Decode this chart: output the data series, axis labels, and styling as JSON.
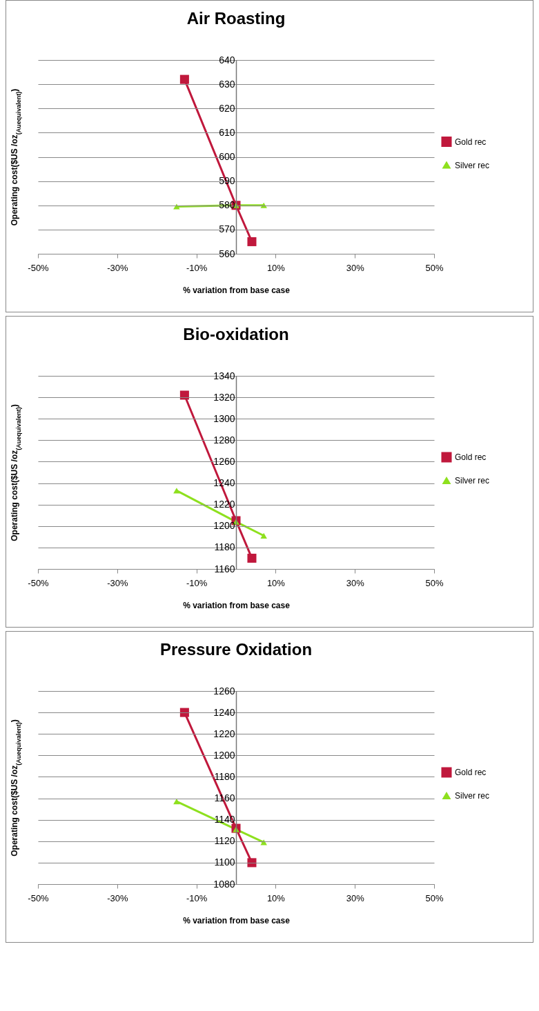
{
  "chart_data": [
    {
      "type": "line",
      "title": "Air Roasting",
      "xlabel": "% variation from base case",
      "ylabel": "Operating cost($US /oz$_{(Auequivalent)}$)",
      "xlim": [
        -50,
        50
      ],
      "xticks": [
        {
          "value": -50,
          "label": "-50%"
        },
        {
          "value": -30,
          "label": "-30%"
        },
        {
          "value": -10,
          "label": "-10%"
        },
        {
          "value": 10,
          "label": "10%"
        },
        {
          "value": 30,
          "label": "30%"
        },
        {
          "value": 50,
          "label": "50%"
        }
      ],
      "ylim": [
        560,
        640
      ],
      "yticks": [
        560,
        570,
        580,
        590,
        600,
        610,
        620,
        630,
        640
      ],
      "grid": "y",
      "legend": "right",
      "line_style": "solid",
      "series": [
        {
          "name": "Gold rec",
          "color": "#c0183c",
          "marker": "square",
          "x": [
            -13,
            0,
            4
          ],
          "values": [
            632,
            580,
            565
          ]
        },
        {
          "name": "Silver rec",
          "color": "#8ee01e",
          "marker": "triangle",
          "x": [
            -15,
            0,
            7
          ],
          "values": [
            579.5,
            580,
            580
          ]
        }
      ]
    },
    {
      "type": "line",
      "title": "Bio-oxidation",
      "xlabel": "% variation from base case",
      "ylabel": "Operating cost($US /oz$_{(Auequivalent)}$)",
      "xlim": [
        -50,
        50
      ],
      "xticks": [
        {
          "value": -50,
          "label": "-50%"
        },
        {
          "value": -30,
          "label": "-30%"
        },
        {
          "value": -10,
          "label": "-10%"
        },
        {
          "value": 10,
          "label": "10%"
        },
        {
          "value": 30,
          "label": "30%"
        },
        {
          "value": 50,
          "label": "50%"
        }
      ],
      "ylim": [
        1160,
        1340
      ],
      "yticks": [
        1160,
        1180,
        1200,
        1220,
        1240,
        1260,
        1280,
        1300,
        1320,
        1340
      ],
      "grid": "y",
      "legend": "right",
      "line_style": "solid",
      "series": [
        {
          "name": "Gold rec",
          "color": "#c0183c",
          "marker": "square",
          "x": [
            -13,
            0,
            4
          ],
          "values": [
            1322,
            1205,
            1170
          ]
        },
        {
          "name": "Silver rec",
          "color": "#8ee01e",
          "marker": "triangle",
          "x": [
            -15,
            0,
            7
          ],
          "values": [
            1233,
            1204,
            1191
          ]
        }
      ]
    },
    {
      "type": "line",
      "title": "Pressure Oxidation",
      "xlabel": "% variation from base case",
      "ylabel": "Operating cost($US /oz$_{(Auequivalent)}$)",
      "xlim": [
        -50,
        50
      ],
      "xticks": [
        {
          "value": -50,
          "label": "-50%"
        },
        {
          "value": -30,
          "label": "-30%"
        },
        {
          "value": -10,
          "label": "-10%"
        },
        {
          "value": 10,
          "label": "10%"
        },
        {
          "value": 30,
          "label": "30%"
        },
        {
          "value": 50,
          "label": "50%"
        }
      ],
      "ylim": [
        1080,
        1260
      ],
      "yticks": [
        1080,
        1100,
        1120,
        1140,
        1160,
        1180,
        1200,
        1220,
        1240,
        1260
      ],
      "grid": "y",
      "legend": "right",
      "line_style": "solid",
      "series": [
        {
          "name": "Gold rec",
          "color": "#c0183c",
          "marker": "square",
          "x": [
            -13,
            0,
            4
          ],
          "values": [
            1240,
            1132,
            1100
          ]
        },
        {
          "name": "Silver rec",
          "color": "#8ee01e",
          "marker": "triangle",
          "x": [
            -15,
            0,
            7
          ],
          "values": [
            1157,
            1131,
            1119
          ]
        }
      ]
    }
  ]
}
